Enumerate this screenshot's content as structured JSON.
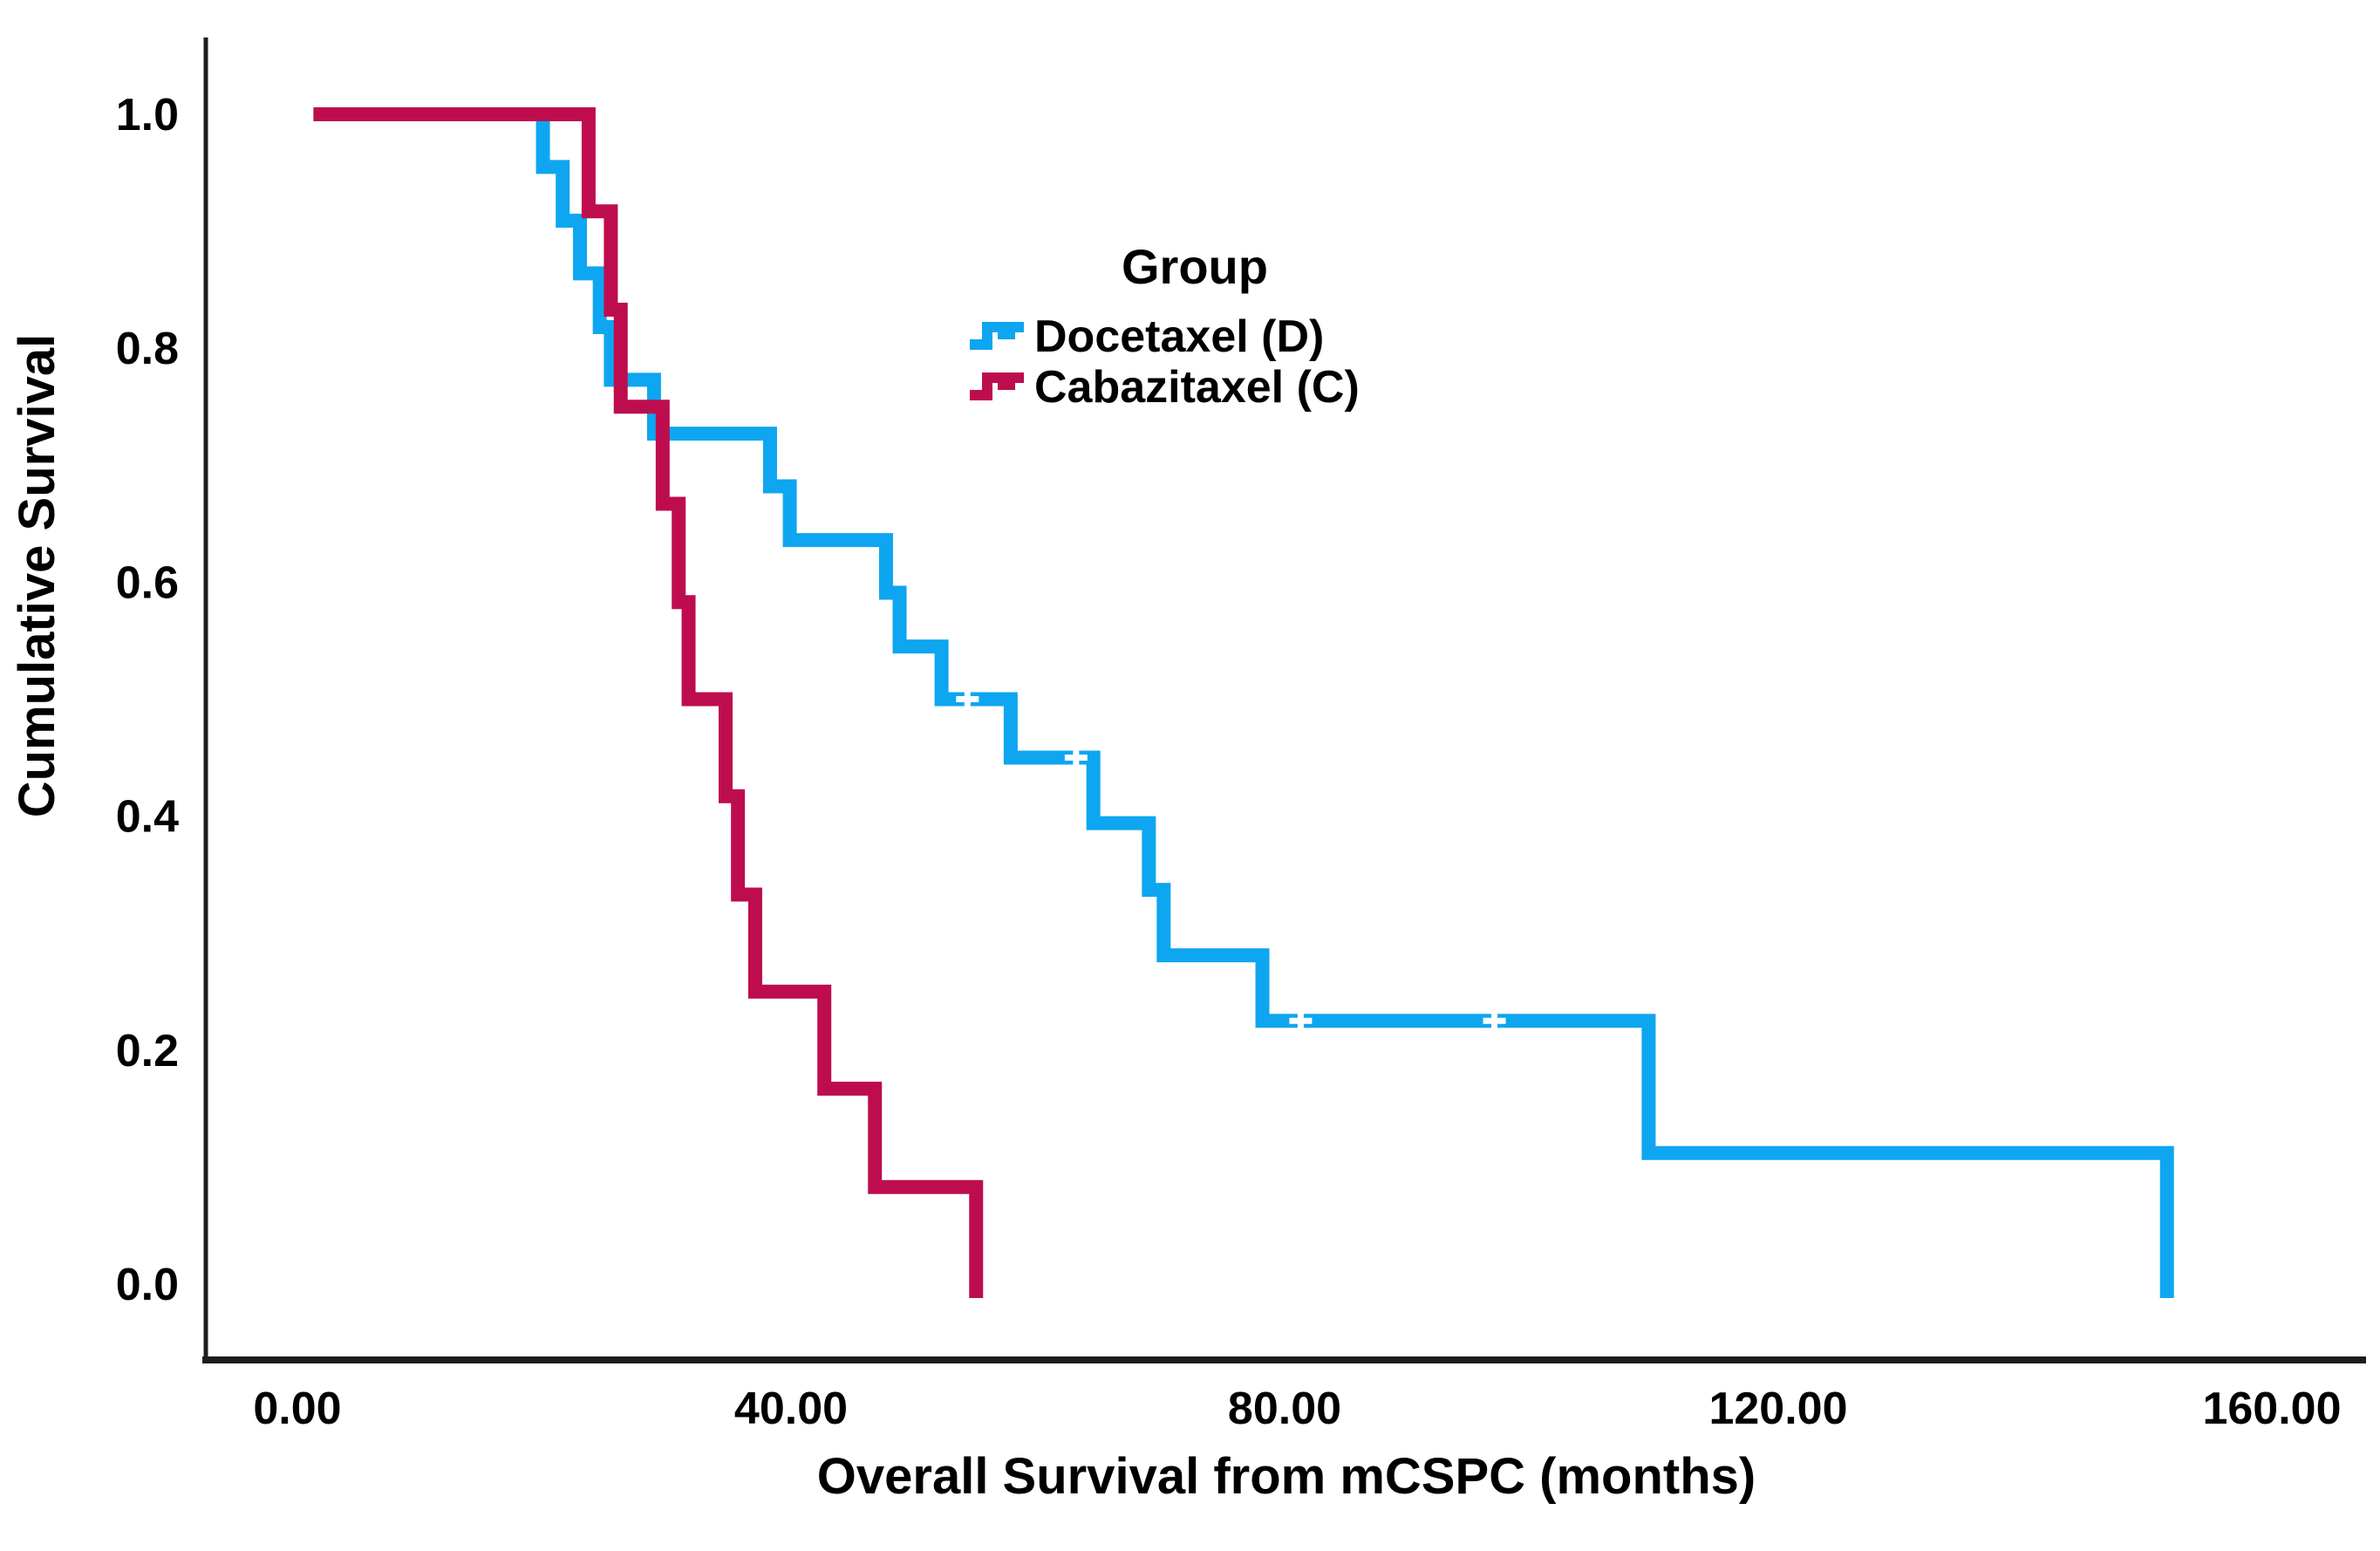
{
  "figure": {
    "background": "#ffffff",
    "y_axis": {
      "title": "Cumulative Survival",
      "ticks": [
        "1.0",
        "0.8",
        "0.6",
        "0.4",
        "0.2",
        "0.0"
      ],
      "tick_values": [
        1.0,
        0.8,
        0.6,
        0.4,
        0.2,
        0.0
      ]
    },
    "x_axis": {
      "title": "Overall Survival from mCSPC (months)",
      "ticks": [
        "0.00",
        "40.00",
        "80.00",
        "120.00",
        "160.00"
      ],
      "tick_values": [
        0,
        40,
        80,
        120,
        160
      ]
    },
    "legend": {
      "title": "Group",
      "items": [
        {
          "label": "Docetaxel (D)",
          "color": "#0ea6f0",
          "swatch": "step-line-icon"
        },
        {
          "label": "Cabazitaxel (C)",
          "color": "#be0d4f",
          "swatch": "step-line-icon"
        }
      ]
    },
    "axis_color": "#1c1c1c",
    "censor_mark_color": "#ffffff"
  },
  "chart_data": {
    "type": "line",
    "subtype": "kaplan-meier-step",
    "title": "",
    "xlabel": "Overall Survival from mCSPC (months)",
    "ylabel": "Cumulative Survival",
    "xlim": [
      0,
      167
    ],
    "ylim": [
      0.0,
      1.0
    ],
    "x_unit": "months",
    "grid": false,
    "legend_position": "upper-center-right",
    "series": [
      {
        "name": "Docetaxel (D)",
        "color": "#0ea6f0",
        "start": {
          "t": 1.3,
          "s": 1.0
        },
        "steps": [
          [
            19.9,
            0.955
          ],
          [
            21.5,
            0.909
          ],
          [
            22.9,
            0.864
          ],
          [
            24.5,
            0.818
          ],
          [
            25.4,
            0.773
          ],
          [
            28.9,
            0.727
          ],
          [
            38.3,
            0.682
          ],
          [
            39.9,
            0.636
          ],
          [
            47.7,
            0.591
          ],
          [
            48.8,
            0.545
          ],
          [
            52.2,
            0.5
          ],
          [
            57.8,
            0.45
          ],
          [
            64.5,
            0.394
          ],
          [
            69.0,
            0.337
          ],
          [
            70.2,
            0.281
          ],
          [
            78.2,
            0.225
          ],
          [
            109.5,
            0.112
          ],
          [
            151.5,
            0.0
          ]
        ],
        "censored": [
          [
            54.3,
            0.5
          ],
          [
            63.1,
            0.45
          ],
          [
            81.3,
            0.225
          ],
          [
            97.0,
            0.225
          ]
        ]
      },
      {
        "name": "Cabazitaxel (C)",
        "color": "#be0d4f",
        "start": {
          "t": 1.3,
          "s": 1.0
        },
        "steps": [
          [
            23.6,
            0.917
          ],
          [
            25.4,
            0.833
          ],
          [
            26.2,
            0.75
          ],
          [
            29.6,
            0.667
          ],
          [
            30.9,
            0.583
          ],
          [
            31.7,
            0.5
          ],
          [
            34.7,
            0.417
          ],
          [
            35.7,
            0.333
          ],
          [
            37.1,
            0.25
          ],
          [
            42.7,
            0.167
          ],
          [
            46.8,
            0.083
          ],
          [
            55.0,
            0.0
          ]
        ],
        "censored": []
      }
    ]
  }
}
